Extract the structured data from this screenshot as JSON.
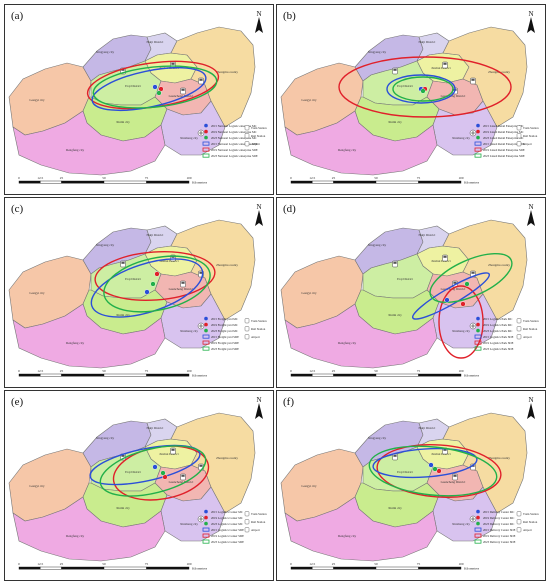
{
  "figure": {
    "north_label": "N",
    "scale_ticks": [
      "0",
      "12.5",
      "25",
      "50",
      "75",
      "100"
    ],
    "scale_unit": "Kilometers",
    "region_labels": {
      "gongyi": "Gongyi city",
      "xingyang": "Xingyang city",
      "huiji": "Huiji District",
      "shangjie": "Shangjie District",
      "erqi": "Erqi District",
      "jinshui": "Jinshui District",
      "guancheng": "Guancheng District",
      "zhongmu": "Zhongmu county",
      "xinmi": "Xinmi city",
      "xinzheng": "Xinzheng city",
      "dengfeng": "Dengfeng city"
    }
  },
  "panels": [
    {
      "id": "a",
      "label": "(a)",
      "legend": [
        "2015 National Logistic enterprise MC",
        "2019 National Logistic enterprise MC",
        "2023 National Logistic enterprise MC",
        "2015 National Logistic enterprise SDE",
        "2019 National Logistic enterprise SDE",
        "2023 National Logistic enterprise SDE"
      ],
      "legend_right": [
        "Train Station",
        "Rail Station",
        "Airport"
      ],
      "colors": {
        "blue": "#2b4fd8",
        "red": "#e0202a",
        "green": "#22b04a"
      }
    },
    {
      "id": "b",
      "label": "(b)",
      "legend": [
        "2015 Listed Retail Enterprise MC",
        "2019 Listed Retail Enterprise MC",
        "2023 Listed Retail Enterprise MC",
        "2015 Listed Retail Enterprise SDE",
        "2019 Listed Retail Enterprise SDE",
        "2023 Listed Retail Enterprise SDE"
      ],
      "legend_right": [
        "Train Station",
        "Rail Station",
        "Airport"
      ],
      "colors": {
        "blue": "#2b4fd8",
        "red": "#e0202a",
        "green": "#22b04a"
      }
    },
    {
      "id": "c",
      "label": "(c)",
      "legend": [
        "2015 Freight yard MC",
        "2019 Freight yard MC",
        "2023 Freight yard MC",
        "2015 Freight yard SDE",
        "2019 Freight yard SDE",
        "2023 Freight yard SDE"
      ],
      "legend_right": [
        "Train Station",
        "Rail Station",
        "Airport"
      ],
      "colors": {
        "blue": "#2b4fd8",
        "red": "#e0202a",
        "green": "#22b04a"
      }
    },
    {
      "id": "d",
      "label": "(d)",
      "legend": [
        "2015 Logistics Park MC",
        "2019 Logistics Park MC",
        "2023 Logistics Park MC",
        "2015 Logistics Park SDE",
        "2019 Logistics Park SDE",
        "2023 Logistics Park SDE"
      ],
      "legend_right": [
        "Train Station",
        "Rail Station",
        "Airport"
      ],
      "colors": {
        "blue": "#2b4fd8",
        "red": "#e0202a",
        "green": "#22b04a"
      }
    },
    {
      "id": "e",
      "label": "(e)",
      "legend": [
        "2015 Logistics Center MC",
        "2019 Logistics Center MC",
        "2023 Logistics Center MC",
        "2015 Logistics Center SDE",
        "2019 Logistics Center SDE",
        "2023 Logistics Center SDE"
      ],
      "legend_right": [
        "Train Station",
        "Rail Station",
        "Airport"
      ],
      "colors": {
        "blue": "#2b4fd8",
        "red": "#e0202a",
        "green": "#22b04a"
      }
    },
    {
      "id": "f",
      "label": "(f)",
      "legend": [
        "2015 Delivery Center MC",
        "2019 Delivery Center MC",
        "2023 Delivery Center MC",
        "2015 Delivery Center SDE",
        "2019 Delivery Center SDE",
        "2023 Delivery Center SDE"
      ],
      "legend_right": [
        "Train Station",
        "Rail Station",
        "Airport"
      ],
      "colors": {
        "blue": "#2b4fd8",
        "red": "#e0202a",
        "green": "#22b04a"
      }
    }
  ],
  "palette": {
    "gongyi": "#f6c7a8",
    "xingyang": "#c5b8e6",
    "huiji": "#d9d4ef",
    "jinshui": "#eef2a2",
    "erqi": "#cdeea3",
    "guancheng": "#f2b6b2",
    "zhongmu": "#f6dca2",
    "xinmi": "#c9ec8e",
    "xinzheng": "#d8c3ef",
    "dengfeng": "#efaae3",
    "border": "#777777"
  }
}
